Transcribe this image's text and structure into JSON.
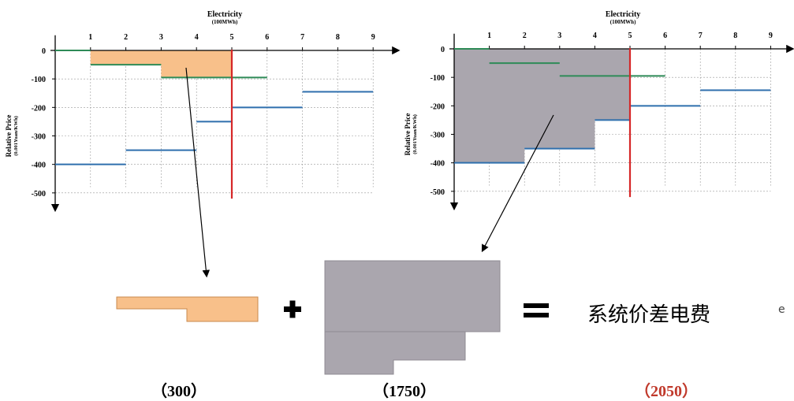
{
  "chart_data": [
    {
      "type": "line",
      "panel": "left",
      "title": "Electricity",
      "subtitle": "(100MWh)",
      "ylabel": "Relative Price",
      "ylabel_unit": "(0.001Yuan/KWh)",
      "x_ticks": [
        "1",
        "2",
        "3",
        "4",
        "5",
        "6",
        "7",
        "8",
        "9"
      ],
      "y_ticks": [
        "0",
        "-100",
        "-200",
        "-300",
        "-400",
        "-500"
      ],
      "xlim": [
        0,
        9.5
      ],
      "ylim": [
        -520,
        20
      ],
      "grid": true,
      "clearing_x": 5,
      "shaded_area": "orange",
      "series": [
        {
          "color": "#2e8b57",
          "segments": [
            [
              0,
              1,
              0
            ],
            [
              1,
              3,
              -50
            ],
            [
              3,
              5,
              -95
            ],
            [
              5,
              6,
              -95
            ]
          ]
        },
        {
          "color": "#2f6fad",
          "segments": [
            [
              0,
              2,
              -400
            ],
            [
              2,
              4,
              -350
            ],
            [
              4,
              5,
              -250
            ],
            [
              5,
              7,
              -200
            ],
            [
              7,
              9,
              -145
            ]
          ]
        }
      ]
    },
    {
      "type": "line",
      "panel": "right",
      "title": "Electricity",
      "subtitle": "(100MWh)",
      "ylabel": "Relative Price",
      "ylabel_unit": "(0.001Yuan/KWh)",
      "x_ticks": [
        "1",
        "2",
        "3",
        "4",
        "5",
        "6",
        "7",
        "8",
        "9"
      ],
      "y_ticks": [
        "0",
        "-100",
        "-200",
        "-300",
        "-400",
        "-500"
      ],
      "xlim": [
        0,
        9.5
      ],
      "ylim": [
        -520,
        20
      ],
      "grid": true,
      "clearing_x": 5,
      "shaded_area": "gray",
      "series": [
        {
          "color": "#2e8b57",
          "segments": [
            [
              0,
              1,
              0
            ],
            [
              1,
              3,
              -50
            ],
            [
              3,
              5,
              -95
            ],
            [
              5,
              6,
              -95
            ]
          ]
        },
        {
          "color": "#2f6fad",
          "segments": [
            [
              0,
              2,
              -400
            ],
            [
              2,
              4,
              -350
            ],
            [
              4,
              5,
              -250
            ],
            [
              5,
              7,
              -200
            ],
            [
              7,
              9,
              -145
            ]
          ]
        }
      ]
    }
  ],
  "formula": {
    "plus": "+",
    "equals": "=",
    "result_text": "系统价差电费",
    "stray_mark": "e"
  },
  "captions": {
    "orange_value": "（300）",
    "gray_value": "（1750）",
    "total_value": "（2050）"
  },
  "colors": {
    "orange": "#f8c08a",
    "orange_border": "#c98a4e",
    "gray": "#aaa6ae",
    "gray_border": "#8f8b93",
    "green": "#2e8b57",
    "blue": "#2f6fad",
    "red": "#d62728",
    "total_red": "#c0392b"
  }
}
